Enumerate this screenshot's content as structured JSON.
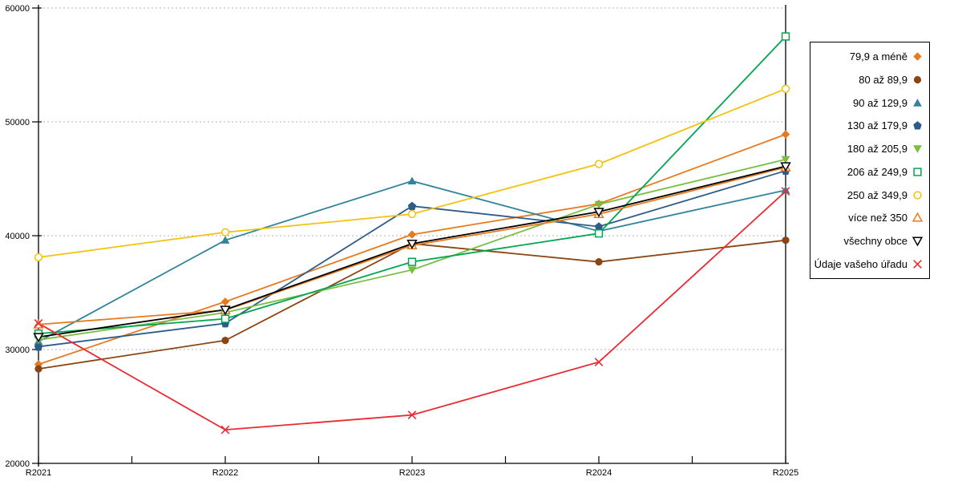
{
  "chart_data": {
    "type": "line",
    "x": [
      "R2021",
      "R2022",
      "R2023",
      "R2024",
      "R2025"
    ],
    "ylim": [
      20000,
      60000
    ],
    "yticks": [
      20000,
      30000,
      40000,
      50000,
      60000
    ],
    "grid": "horizontal-dashed",
    "grid_color": "#b3b3b3",
    "axis_color": "#000000",
    "legend_position": "right",
    "series": [
      {
        "name": "79,9 a méně",
        "marker": "diamond-filled",
        "color": "#E87A1E",
        "values": [
          28700,
          34200,
          40100,
          42800,
          48900
        ]
      },
      {
        "name": "80 až 89,9",
        "marker": "circle-filled",
        "color": "#8B4513",
        "values": [
          28300,
          30800,
          39300,
          37700,
          39600
        ]
      },
      {
        "name": "90 až 129,9",
        "marker": "triangle-up-filled",
        "color": "#31849B",
        "values": [
          30700,
          39600,
          44800,
          40400,
          44000
        ]
      },
      {
        "name": "130 až 179,9",
        "marker": "pentagon-filled",
        "color": "#2E5C8A",
        "values": [
          30250,
          32300,
          42600,
          40800,
          45700
        ]
      },
      {
        "name": "180 až 205,9",
        "marker": "triangle-down-filled",
        "color": "#77BE41",
        "values": [
          30850,
          33250,
          37000,
          42750,
          46700
        ]
      },
      {
        "name": "206 až 249,9",
        "marker": "square-open",
        "color": "#00A550",
        "values": [
          31400,
          32700,
          37700,
          40200,
          57500
        ]
      },
      {
        "name": "250 až 349,9",
        "marker": "circle-open",
        "color": "#F2C20D",
        "values": [
          38100,
          40300,
          41900,
          46300,
          52900
        ]
      },
      {
        "name": "více než 350",
        "marker": "triangle-up-open",
        "color": "#E87A1E",
        "values": [
          32200,
          33450,
          39150,
          41900,
          46000
        ]
      },
      {
        "name": "všechny obce",
        "marker": "triangle-down-open",
        "color": "#000000",
        "values": [
          31100,
          33500,
          39300,
          42100,
          46100
        ]
      },
      {
        "name": "Údaje vašeho úřadu",
        "marker": "x",
        "color": "#EA2A33",
        "values": [
          32300,
          22950,
          24250,
          28900,
          43900
        ]
      }
    ]
  }
}
